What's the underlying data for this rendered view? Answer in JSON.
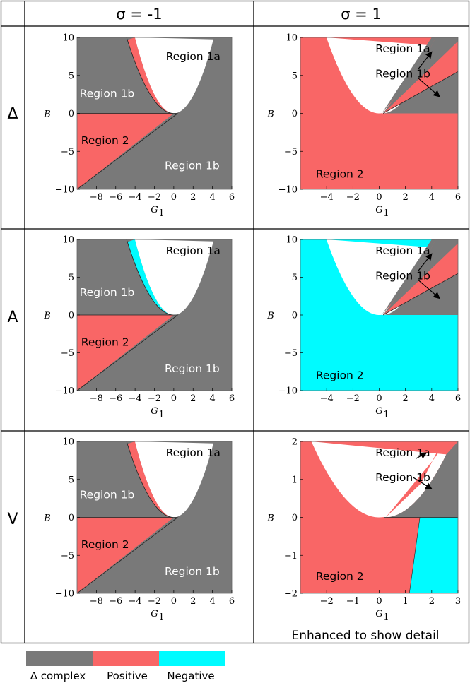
{
  "colors": {
    "complex": "#797979",
    "positive": "#f96666",
    "negative": "#00fbff",
    "white": "#ffffff"
  },
  "headers": {
    "col1": "σ = -1",
    "col2": "σ = 1"
  },
  "rows": {
    "r1": "Δ",
    "r2": "A",
    "r3": "V"
  },
  "axes": {
    "ylabel": "B",
    "xlabel": "G",
    "xlabel_sub": "1"
  },
  "note": "Enhanced to show detail",
  "legend": [
    {
      "label": "Δ complex",
      "color": "#797979"
    },
    {
      "label": "Positive",
      "color": "#f96666"
    },
    {
      "label": "Negative",
      "color": "#00fbff"
    }
  ],
  "chart_data": [
    {
      "id": "delta-left",
      "type": "area",
      "xlim": [
        -10,
        6
      ],
      "ylim": [
        -10,
        10
      ],
      "xticks": [
        -8,
        -6,
        -4,
        -2,
        0,
        2,
        4,
        6
      ],
      "yticks": [
        -10,
        -5,
        0,
        5,
        10
      ],
      "sliver": "positive",
      "lower": "positive",
      "labels": [
        {
          "text": "Region 1a",
          "color": "black",
          "x": 2.0,
          "y": 7.5
        },
        {
          "text": "Region 1b",
          "color": "white",
          "x": -6.9,
          "y": 2.6
        },
        {
          "text": "Region 2",
          "color": "black",
          "x": -7.1,
          "y": -3.6
        },
        {
          "text": "Region 1b",
          "color": "white",
          "x": 1.9,
          "y": -6.9
        }
      ]
    },
    {
      "id": "delta-right",
      "type": "area",
      "xlim": [
        -6,
        6
      ],
      "ylim": [
        -10,
        10
      ],
      "xticks": [
        -4,
        -2,
        0,
        2,
        4,
        6
      ],
      "yticks": [
        -10,
        -5,
        0,
        5,
        10
      ],
      "lower": "positive",
      "wedge": "positive",
      "labels": [
        {
          "text": "Region 1a",
          "x": 1.8,
          "y": 8.5
        },
        {
          "text": "Region 1b",
          "x": 1.8,
          "y": 5.2
        },
        {
          "text": "Region 2",
          "x": -3.0,
          "y": -8.0
        }
      ]
    },
    {
      "id": "a-left",
      "type": "area",
      "xlim": [
        -10,
        6
      ],
      "ylim": [
        -10,
        10
      ],
      "xticks": [
        -8,
        -6,
        -4,
        -2,
        0,
        2,
        4,
        6
      ],
      "yticks": [
        -10,
        -5,
        0,
        5,
        10
      ],
      "sliver": "negative",
      "lower": "positive",
      "labels": [
        {
          "text": "Region 1a",
          "color": "black",
          "x": 2.0,
          "y": 8.5
        },
        {
          "text": "Region 1b",
          "color": "white",
          "x": -6.9,
          "y": 3.0
        },
        {
          "text": "Region 2",
          "color": "black",
          "x": -7.1,
          "y": -3.6
        },
        {
          "text": "Region 1b",
          "color": "white",
          "x": 1.9,
          "y": -7.1
        }
      ]
    },
    {
      "id": "a-right",
      "type": "area",
      "xlim": [
        -6,
        6
      ],
      "ylim": [
        -10,
        10
      ],
      "xticks": [
        -4,
        -2,
        0,
        2,
        4,
        6
      ],
      "yticks": [
        -10,
        -5,
        0,
        5,
        10
      ],
      "lower": "negative",
      "wedge": "positive",
      "labels": [
        {
          "text": "Region 1a",
          "x": 1.8,
          "y": 8.5
        },
        {
          "text": "Region 1b",
          "x": 1.8,
          "y": 5.2
        },
        {
          "text": "Region 2",
          "x": -3.0,
          "y": -8.0
        }
      ]
    },
    {
      "id": "v-left",
      "type": "area",
      "xlim": [
        -10,
        6
      ],
      "ylim": [
        -10,
        10
      ],
      "xticks": [
        -8,
        -6,
        -4,
        -2,
        0,
        2,
        4,
        6
      ],
      "yticks": [
        -10,
        -5,
        0,
        5,
        10
      ],
      "sliver": "positive",
      "lower": "positive",
      "labels": [
        {
          "text": "Region 1a",
          "color": "black",
          "x": 2.0,
          "y": 8.5
        },
        {
          "text": "Region 1b",
          "color": "white",
          "x": -6.9,
          "y": 3.0
        },
        {
          "text": "Region 2",
          "color": "black",
          "x": -7.1,
          "y": -3.6
        },
        {
          "text": "Region 1b",
          "color": "white",
          "x": 1.9,
          "y": -7.1
        }
      ]
    },
    {
      "id": "v-right",
      "type": "area",
      "xlim": [
        -3,
        3
      ],
      "ylim": [
        -2,
        2
      ],
      "xticks": [
        -2,
        -1,
        0,
        1,
        2,
        3
      ],
      "yticks": [
        -2,
        -1,
        0,
        1,
        2
      ],
      "lower": "positive-negative",
      "labels": [
        {
          "text": "Region 1a",
          "x": 0.9,
          "y": 1.7
        },
        {
          "text": "Region 1b",
          "x": 0.9,
          "y": 1.05
        },
        {
          "text": "Region 2",
          "x": -1.5,
          "y": -1.55
        }
      ]
    }
  ]
}
